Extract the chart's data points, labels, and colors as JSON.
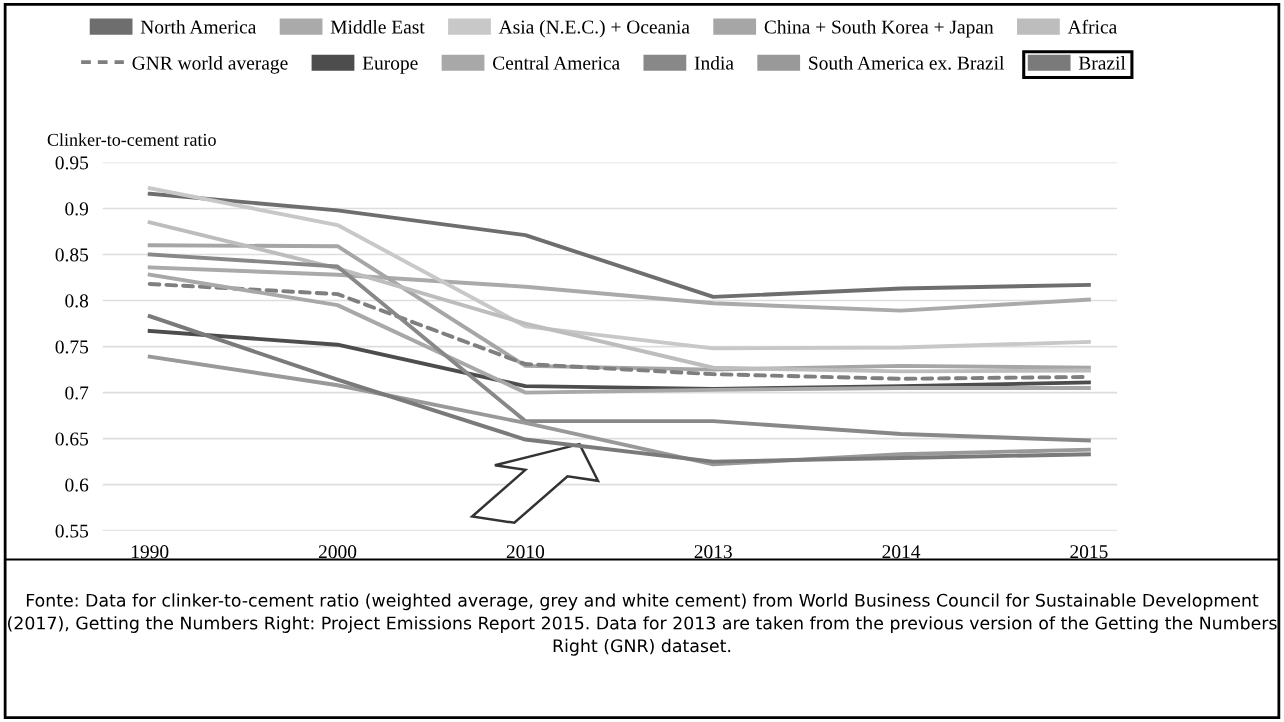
{
  "chart_data": {
    "type": "line",
    "ylabel": "Clinker-to-cement ratio",
    "categories": [
      "1990",
      "2000",
      "2010",
      "2013",
      "2014",
      "2015"
    ],
    "series": [
      {
        "name": "North America",
        "color": "#6e6e6e",
        "values": [
          0.916,
          0.898,
          0.871,
          0.804,
          0.813,
          0.817
        ]
      },
      {
        "name": "Middle East",
        "color": "#aaaaaa",
        "values": [
          0.836,
          0.828,
          0.815,
          0.797,
          0.789,
          0.801
        ]
      },
      {
        "name": "Asia (N.E.C.) + Oceania",
        "color": "#c8c8c8",
        "values": [
          0.922,
          0.882,
          0.772,
          0.748,
          0.749,
          0.755
        ]
      },
      {
        "name": "China + South Korea + Japan",
        "color": "#a6a6a6",
        "values": [
          0.86,
          0.859,
          0.729,
          0.725,
          0.729,
          0.727
        ]
      },
      {
        "name": "Africa",
        "color": "#bdbdbd",
        "values": [
          0.885,
          0.835,
          0.775,
          0.727,
          0.723,
          0.724
        ]
      },
      {
        "name": "GNR world average",
        "color": "#7f7f7f",
        "line_style": "dashed",
        "values": [
          0.818,
          0.807,
          0.731,
          0.72,
          0.715,
          0.717
        ]
      },
      {
        "name": "Europe",
        "color": "#4d4d4d",
        "values": [
          0.767,
          0.752,
          0.707,
          0.704,
          0.707,
          0.711
        ]
      },
      {
        "name": "Central America",
        "color": "#a8a8a8",
        "values": [
          0.828,
          0.795,
          0.7,
          0.703,
          0.705,
          0.705
        ]
      },
      {
        "name": "India",
        "color": "#888888",
        "values": [
          0.85,
          0.837,
          0.669,
          0.669,
          0.655,
          0.648
        ]
      },
      {
        "name": "South America ex. Brazil",
        "color": "#999999",
        "values": [
          0.739,
          0.708,
          0.667,
          0.622,
          0.633,
          0.638
        ]
      },
      {
        "name": "Brazil",
        "color": "#7a7a7a",
        "values": [
          0.783,
          0.714,
          0.649,
          0.625,
          0.629,
          0.633
        ]
      }
    ],
    "ylim": [
      0.55,
      0.95
    ],
    "yticks": [
      0.55,
      0.6,
      0.65,
      0.7,
      0.75,
      0.8,
      0.85,
      0.9,
      0.95
    ],
    "grid": "y",
    "legend": "top",
    "marker": "none",
    "line_style": "solid",
    "annotations": [
      "Fonte: Data for clinker-to-cement ratio (weighted average, grey and white cement) from World Business Council for Sustainable Development (2017), Getting the Numbers Right: Project Emissions Report 2015. Data for 2013 are taken from the previous version of the Getting the Numbers Right (GNR) dataset."
    ]
  }
}
